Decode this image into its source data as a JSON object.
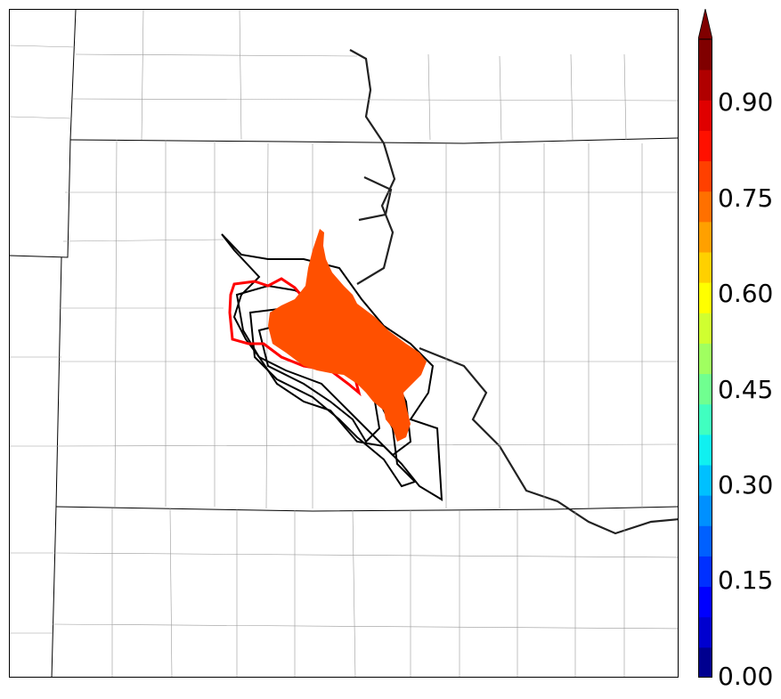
{
  "map": {
    "fill_color": "#ff5000",
    "contour_colors": {
      "ensemble": "#000000",
      "highlight": "#ff0000"
    }
  },
  "colorbar": {
    "tick_labels": [
      "0.90",
      "0.75",
      "0.60",
      "0.45",
      "0.30",
      "0.15",
      "0.00"
    ],
    "colors": [
      "#00008f",
      "#0000cf",
      "#0000ff",
      "#0030ff",
      "#0060ff",
      "#0090ff",
      "#00c0ff",
      "#10f0f0",
      "#40ffc0",
      "#70ff90",
      "#a0ff60",
      "#d0ff30",
      "#ffff00",
      "#ffd000",
      "#ffa000",
      "#ff7000",
      "#ff4000",
      "#ff1000",
      "#e00000",
      "#b00000",
      "#800000"
    ]
  }
}
